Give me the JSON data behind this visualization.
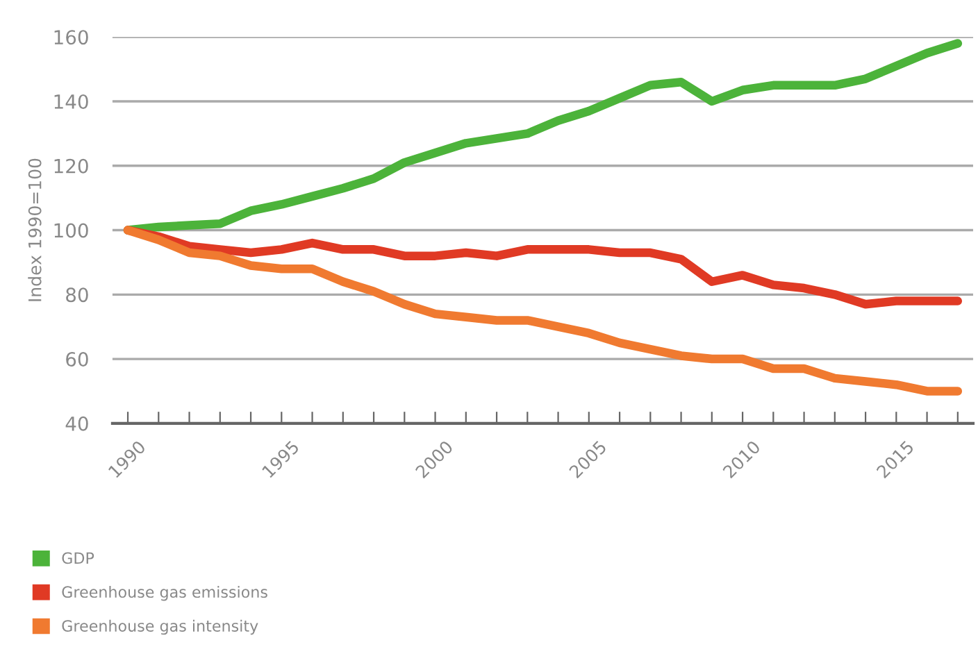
{
  "chart_data": {
    "type": "line",
    "ylabel": "Index 1990=100",
    "x": [
      1990,
      1991,
      1992,
      1993,
      1994,
      1995,
      1996,
      1997,
      1998,
      1999,
      2000,
      2001,
      2002,
      2003,
      2004,
      2005,
      2006,
      2007,
      2008,
      2009,
      2010,
      2011,
      2012,
      2013,
      2014,
      2015,
      2016,
      2017
    ],
    "series": [
      {
        "name": "GDP",
        "color": "#4cb33a",
        "values": [
          100,
          101,
          101.5,
          102,
          106,
          108,
          110.5,
          113,
          116,
          121,
          124,
          127,
          128.5,
          130,
          134,
          137,
          141,
          145,
          146,
          140,
          143.5,
          145,
          145,
          145,
          147,
          151,
          155,
          158
        ]
      },
      {
        "name": "Greenhouse gas emissions",
        "color": "#e03a24",
        "values": [
          100,
          98,
          95,
          94,
          93,
          94,
          96,
          94,
          94,
          92,
          92,
          93,
          92,
          94,
          94,
          94,
          93,
          93,
          91,
          84,
          86,
          83,
          82,
          80,
          77,
          78,
          78,
          78
        ]
      },
      {
        "name": "Greenhouse gas intensity",
        "color": "#f07a30",
        "values": [
          100,
          97,
          93,
          92,
          89,
          88,
          88,
          84,
          81,
          77,
          74,
          73,
          72,
          72,
          70,
          68,
          65,
          63,
          61,
          60,
          60,
          57,
          57,
          54,
          53,
          52,
          50,
          50
        ]
      }
    ],
    "xlim": [
      1989.5,
      2017.5
    ],
    "ylim": [
      40,
      160
    ],
    "xticks": [
      1990,
      {
        "value": 1991,
        "label": null
      },
      {
        "value": 1992,
        "label": null
      },
      {
        "value": 1993,
        "label": null
      },
      {
        "value": 1994,
        "label": null
      },
      1995,
      {
        "value": 1996,
        "label": null
      },
      {
        "value": 1997,
        "label": null
      },
      {
        "value": 1998,
        "label": null
      },
      {
        "value": 1999,
        "label": null
      },
      2000,
      {
        "value": 2001,
        "label": null
      },
      {
        "value": 2002,
        "label": null
      },
      {
        "value": 2003,
        "label": null
      },
      {
        "value": 2004,
        "label": null
      },
      2005,
      {
        "value": 2006,
        "label": null
      },
      {
        "value": 2007,
        "label": null
      },
      {
        "value": 2008,
        "label": null
      },
      {
        "value": 2009,
        "label": null
      },
      2010,
      {
        "value": 2011,
        "label": null
      },
      {
        "value": 2012,
        "label": null
      },
      {
        "value": 2013,
        "label": null
      },
      {
        "value": 2014,
        "label": null
      },
      2015,
      {
        "value": 2016,
        "label": null
      },
      {
        "value": 2017,
        "label": null
      }
    ],
    "yticks": [
      40,
      60,
      80,
      100,
      120,
      140,
      160
    ],
    "grid": "y",
    "legend": "bottom",
    "line_style": "solid",
    "marker": "none"
  }
}
